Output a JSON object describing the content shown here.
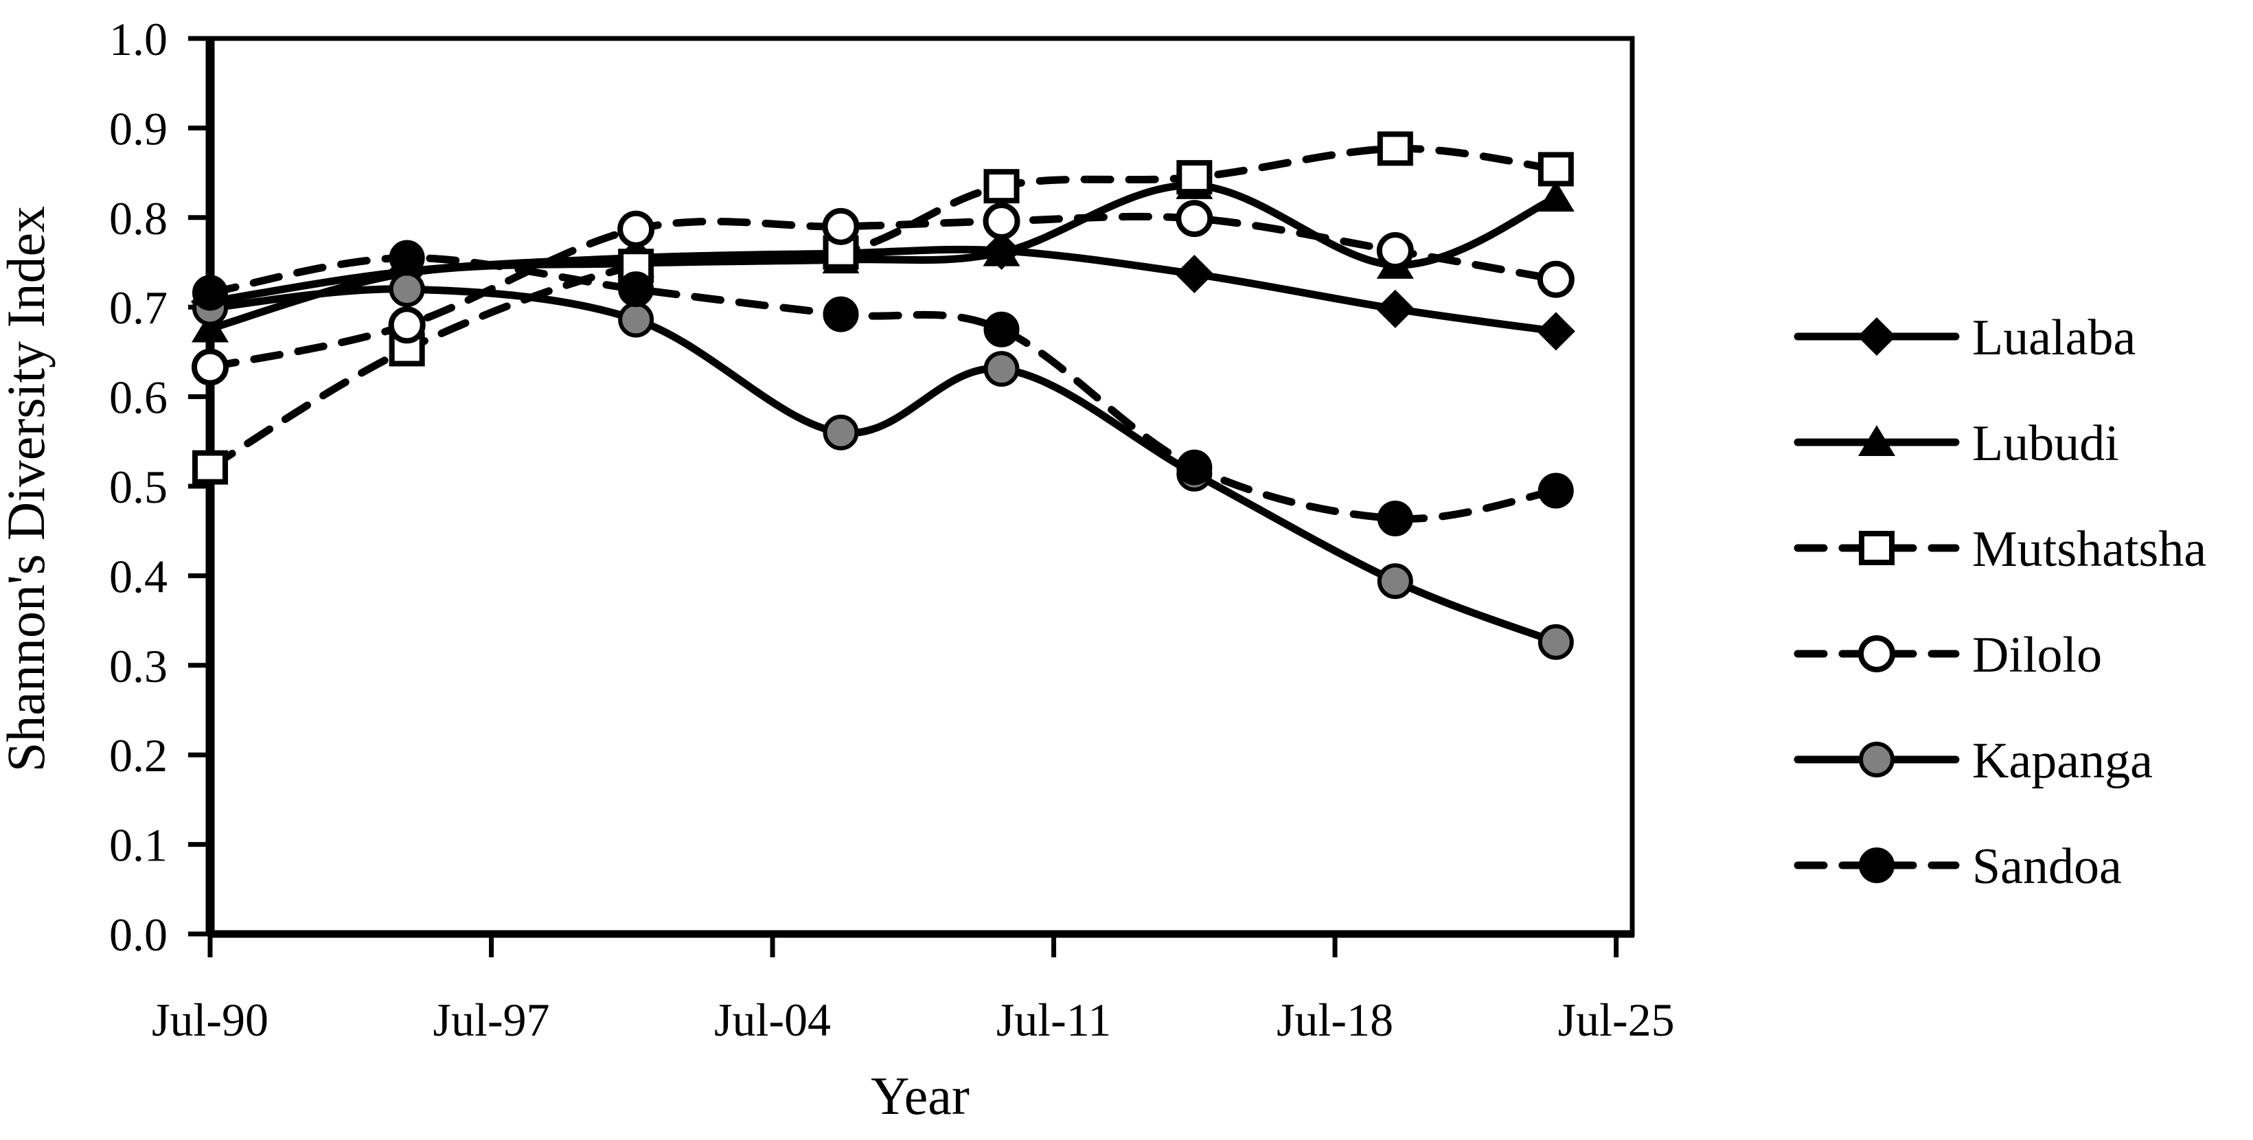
{
  "figure": {
    "background": "#ffffff",
    "line_color": "#000000",
    "gray_fill": "#808080"
  },
  "chart_data": {
    "type": "line",
    "title": "",
    "xlabel": "Year",
    "ylabel": "Shannon's Diversity Index",
    "grid": false,
    "legend_position": "right",
    "xlim": [
      1990.5,
      2025.9
    ],
    "ylim": [
      0.0,
      1.0
    ],
    "x_tick_labels": [
      "Jul-90",
      "Jul-97",
      "Jul-04",
      "Jul-11",
      "Jul-18",
      "Jul-25"
    ],
    "x_tick_years": [
      1990.5,
      1997.5,
      2004.5,
      2011.5,
      2018.5,
      2025.5
    ],
    "y_ticks": [
      0.0,
      0.1,
      0.2,
      0.3,
      0.4,
      0.5,
      0.6,
      0.7,
      0.8,
      0.9,
      1.0
    ],
    "y_tick_labels": [
      "0.0",
      "0.1",
      "0.2",
      "0.3",
      "0.4",
      "0.5",
      "0.6",
      "0.7",
      "0.8",
      "0.9",
      "1.0"
    ],
    "x_years": [
      1990.5,
      1995.4,
      2001.1,
      2006.2,
      2010.2,
      2015.0,
      2020.0,
      2024.0
    ],
    "series": [
      {
        "name": "Lualaba",
        "line_style": "solid",
        "marker": "diamond",
        "marker_fill": "#000000",
        "values": [
          0.706,
          0.74,
          0.755,
          0.76,
          0.763,
          0.737,
          0.698,
          0.673
        ]
      },
      {
        "name": "Lubudi",
        "line_style": "solid",
        "marker": "triangle",
        "marker_fill": "#000000",
        "values": [
          0.676,
          0.738,
          0.749,
          0.753,
          0.761,
          0.836,
          0.747,
          0.822
        ]
      },
      {
        "name": "Mutshatsha",
        "line_style": "dashed",
        "marker": "square",
        "marker_fill": "#ffffff",
        "values": [
          0.521,
          0.653,
          0.746,
          0.761,
          0.835,
          0.845,
          0.877,
          0.854
        ]
      },
      {
        "name": "Dilolo",
        "line_style": "dashed",
        "marker": "circle",
        "marker_fill": "#ffffff",
        "values": [
          0.633,
          0.68,
          0.787,
          0.79,
          0.796,
          0.799,
          0.763,
          0.731
        ]
      },
      {
        "name": "Kapanga",
        "line_style": "solid",
        "marker": "circle",
        "marker_fill": "#808080",
        "values": [
          0.699,
          0.72,
          0.686,
          0.56,
          0.631,
          0.514,
          0.394,
          0.326
        ]
      },
      {
        "name": "Sandoa",
        "line_style": "dashed",
        "marker": "circle",
        "marker_fill": "#000000",
        "values": [
          0.716,
          0.755,
          0.72,
          0.692,
          0.675,
          0.521,
          0.464,
          0.495
        ]
      }
    ]
  }
}
